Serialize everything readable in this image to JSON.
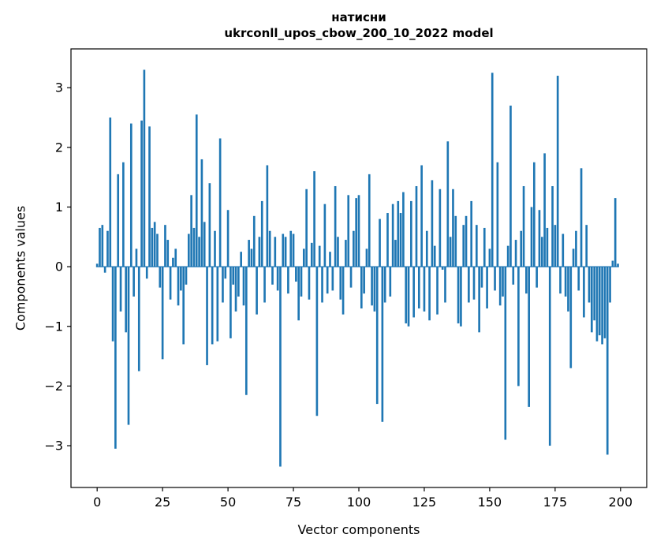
{
  "chart_data": {
    "type": "bar",
    "title": "натисни",
    "subtitle": "ukrconll_upos_cbow_200_10_2022 model",
    "xlabel": "Vector components",
    "ylabel": "Components values",
    "xlim": [
      -10,
      210
    ],
    "ylim": [
      -3.7,
      3.65
    ],
    "x_ticks": [
      0,
      25,
      50,
      75,
      100,
      125,
      150,
      175,
      200
    ],
    "y_ticks": [
      -3,
      -2,
      -1,
      0,
      1,
      2,
      3
    ],
    "bar_color": "#1f77b4",
    "bar_width": 0.8,
    "grid": false,
    "legend": "none",
    "values": [
      0.05,
      0.65,
      0.7,
      -0.1,
      0.6,
      2.5,
      -1.25,
      -3.05,
      1.55,
      -0.75,
      1.75,
      -1.1,
      -2.65,
      2.4,
      -0.5,
      0.3,
      -1.75,
      2.45,
      3.3,
      -0.2,
      2.35,
      0.65,
      0.75,
      0.55,
      -0.35,
      -1.55,
      0.7,
      0.45,
      -0.55,
      0.15,
      0.3,
      -0.65,
      -0.4,
      -1.3,
      -0.3,
      0.55,
      1.2,
      0.65,
      2.55,
      0.5,
      1.8,
      0.75,
      -1.65,
      1.4,
      -1.3,
      0.6,
      -1.25,
      2.15,
      -0.6,
      -0.2,
      0.95,
      -1.2,
      -0.3,
      -0.75,
      -0.5,
      0.25,
      -0.65,
      -2.15,
      0.45,
      0.3,
      0.85,
      -0.8,
      0.5,
      1.1,
      -0.6,
      1.7,
      0.6,
      -0.3,
      0.5,
      -0.4,
      -3.35,
      0.55,
      0.5,
      -0.45,
      0.6,
      0.55,
      -0.25,
      -0.9,
      -0.5,
      0.3,
      1.3,
      -0.55,
      0.4,
      1.6,
      -2.5,
      0.35,
      -0.6,
      1.05,
      -0.45,
      0.25,
      -0.4,
      1.35,
      0.5,
      -0.55,
      -0.8,
      0.45,
      1.2,
      -0.35,
      0.6,
      1.15,
      1.2,
      -0.7,
      -0.45,
      0.3,
      1.55,
      -0.65,
      -0.75,
      -2.3,
      0.8,
      -2.6,
      -0.6,
      0.9,
      -0.5,
      1.05,
      0.45,
      1.1,
      0.9,
      1.25,
      -0.95,
      -1.0,
      1.1,
      -0.85,
      1.35,
      -0.7,
      1.7,
      -0.75,
      0.6,
      -0.9,
      1.45,
      0.35,
      -0.8,
      1.3,
      -0.05,
      -0.6,
      2.1,
      0.5,
      1.3,
      0.85,
      -0.95,
      -1.0,
      0.7,
      0.85,
      -0.6,
      1.1,
      -0.55,
      0.7,
      -1.1,
      -0.35,
      0.65,
      -0.7,
      0.3,
      3.25,
      -0.4,
      1.75,
      -0.65,
      -0.5,
      -2.9,
      0.35,
      2.7,
      -0.3,
      0.45,
      -2.0,
      0.6,
      1.35,
      -0.45,
      -2.35,
      1.0,
      1.75,
      -0.35,
      0.95,
      0.5,
      1.9,
      0.65,
      -3.0,
      1.35,
      0.7,
      3.2,
      -0.45,
      0.55,
      -0.5,
      -0.75,
      -1.7,
      0.3,
      0.6,
      -0.4,
      1.65,
      -0.85,
      0.7,
      -0.6,
      -1.1,
      -0.9,
      -1.25,
      -1.15,
      -1.3,
      -1.2,
      -3.15,
      -0.6,
      0.1,
      1.15,
      0.05
    ]
  }
}
